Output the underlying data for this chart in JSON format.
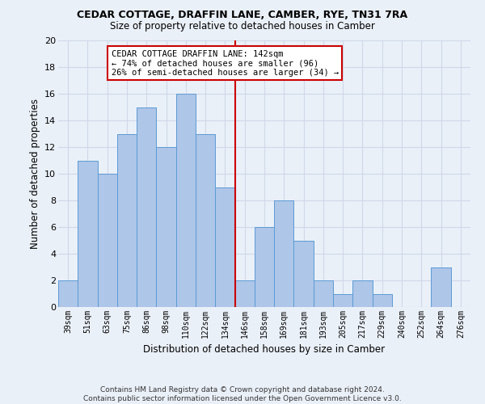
{
  "title": "CEDAR COTTAGE, DRAFFIN LANE, CAMBER, RYE, TN31 7RA",
  "subtitle": "Size of property relative to detached houses in Camber",
  "xlabel": "Distribution of detached houses by size in Camber",
  "ylabel": "Number of detached properties",
  "categories": [
    "39sqm",
    "51sqm",
    "63sqm",
    "75sqm",
    "86sqm",
    "98sqm",
    "110sqm",
    "122sqm",
    "134sqm",
    "146sqm",
    "158sqm",
    "169sqm",
    "181sqm",
    "193sqm",
    "205sqm",
    "217sqm",
    "229sqm",
    "240sqm",
    "252sqm",
    "264sqm",
    "276sqm"
  ],
  "values": [
    2,
    11,
    10,
    13,
    15,
    12,
    16,
    13,
    9,
    2,
    6,
    8,
    5,
    2,
    1,
    2,
    1,
    0,
    0,
    3,
    0
  ],
  "bar_color": "#aec6e8",
  "bar_edge_color": "#5b9bd5",
  "vline_x_idx": 8.5,
  "vline_color": "#cc0000",
  "annotation_text": "CEDAR COTTAGE DRAFFIN LANE: 142sqm\n← 74% of detached houses are smaller (96)\n26% of semi-detached houses are larger (34) →",
  "annotation_box_color": "#ffffff",
  "annotation_box_edge": "#cc0000",
  "ylim": [
    0,
    20
  ],
  "yticks": [
    0,
    2,
    4,
    6,
    8,
    10,
    12,
    14,
    16,
    18,
    20
  ],
  "grid_color": "#d0d8e8",
  "background_color": "#eaf0f8",
  "footer1": "Contains HM Land Registry data © Crown copyright and database right 2024.",
  "footer2": "Contains public sector information licensed under the Open Government Licence v3.0."
}
